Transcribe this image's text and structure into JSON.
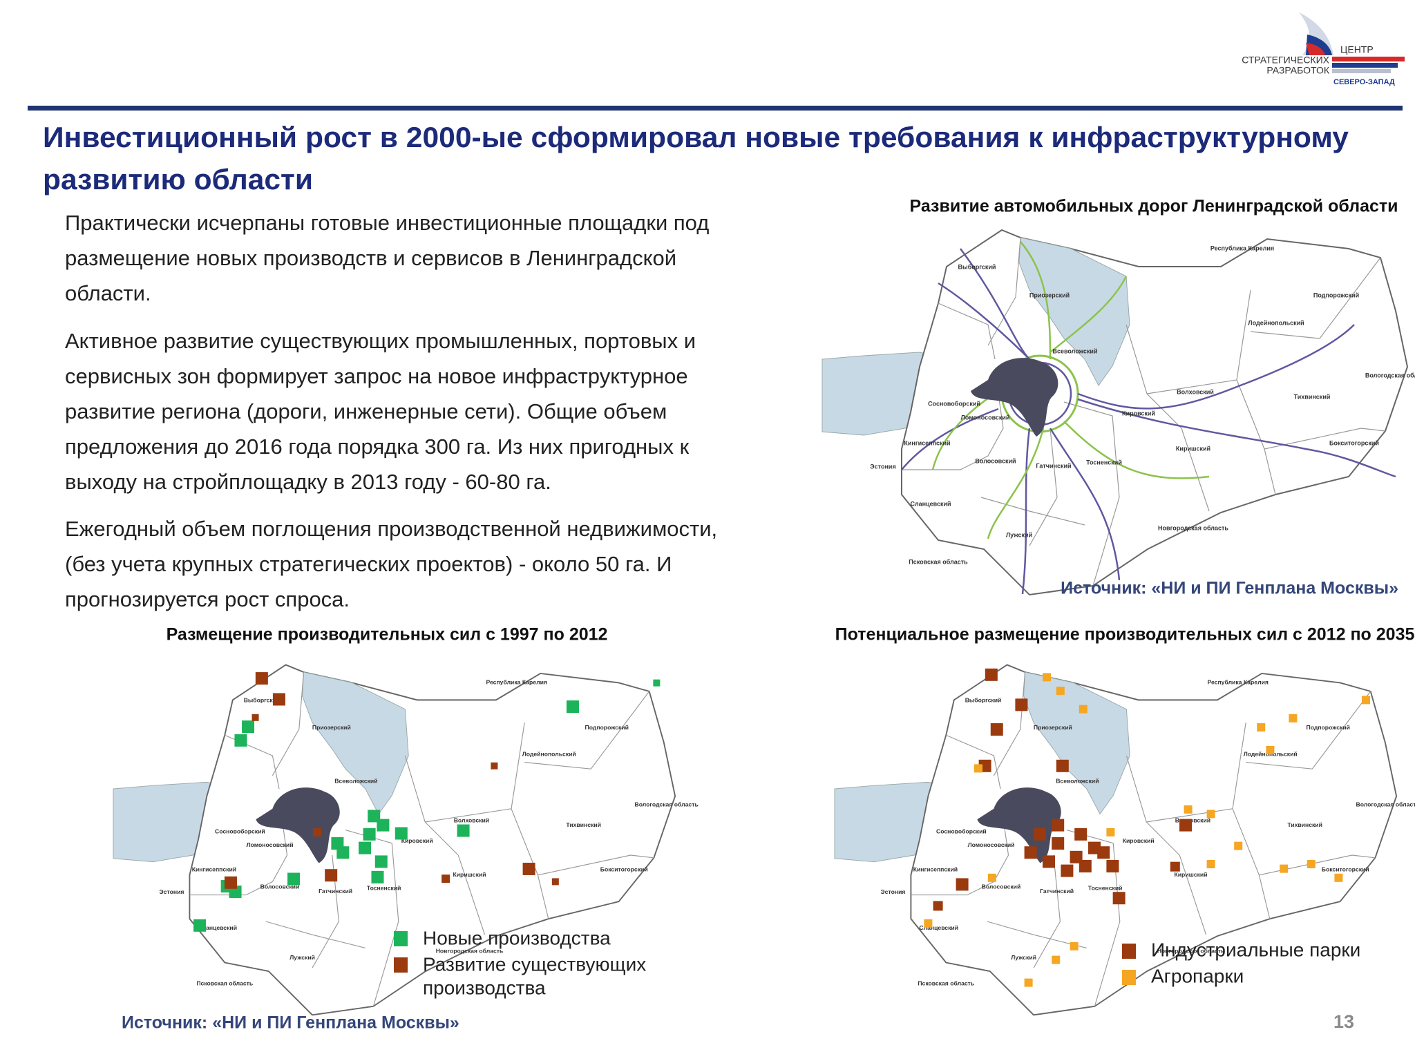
{
  "header": {
    "logo": {
      "line1": "ЦЕНТР",
      "line2": "СТРАТЕГИЧЕСКИХ",
      "line3": "РАЗРАБОТОК",
      "line4": "СЕВЕРО-ЗАПАД"
    },
    "title": [
      "Инвестиционный рост в 2000-ые сформировал новые требования к инфраструктурному",
      "развитию области"
    ]
  },
  "text": {
    "paragraphs": [
      [
        "Практически исчерпаны готовые инвестиционные площадки под",
        "размещение новых производств и сервисов в Ленинградской",
        "области."
      ],
      [
        "Активное развитие существующих промышленных, портовых и",
        "сервисных зон формирует запрос на новое инфраструктурное",
        "развитие региона (дороги, инженерные сети). Общие объем",
        "предложения до 2016 года порядка 300 га. Из них пригодных к",
        "выходу на стройплощадку в 2013 году  - 60-80 га."
      ],
      [
        "Ежегодный объем поглощения производственной недвижимости,",
        "(без учета крупных  стратегических проектов)  - около 50 га. И",
        "прогнозируется рост спроса."
      ]
    ]
  },
  "maps": [
    {
      "title": "Развитие автомобильных дорог Ленинградской области",
      "source": "Источник: «НИ и ПИ Генплана Москвы»"
    },
    {
      "title": "Размещение производительных сил с 1997 по  2012",
      "legend": [
        {
          "label": [
            "Новые производства"
          ],
          "color": "#1db35a"
        },
        {
          "label": [
            "Развитие существующих",
            "производства"
          ],
          "color": "#9a3a0e"
        }
      ],
      "source": "Источник: «НИ и ПИ Генплана Москвы»"
    },
    {
      "title": "Потенциальное размещение производительных сил с 2012 по 2035",
      "legend": [
        {
          "label": [
            "Индустриальные парки"
          ],
          "color": "#9a3a0e"
        },
        {
          "label": [
            "Агропарки"
          ],
          "color": "#f5a623"
        }
      ]
    }
  ],
  "region_labels": [
    "Выборгский",
    "Приозерский",
    "Всеволожский",
    "Сосновоборский",
    "Ломоносовский",
    "Кингисеппский",
    "Волосовский",
    "Гатчинский",
    "Тосненский",
    "Кировский",
    "Волховский",
    "Тихвинский",
    "Бокситогорский",
    "Киришский",
    "Лужский",
    "Сланцевский",
    "Подпорожский",
    "Лодейнопольский",
    "Республика Карелия",
    "Вологодская область",
    "Новгородская область",
    "Псковская область",
    "Эстония"
  ],
  "page_number": "13"
}
